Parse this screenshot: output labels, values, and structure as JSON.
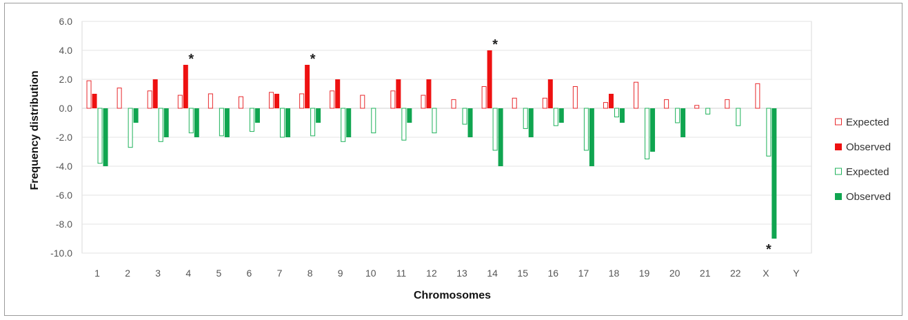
{
  "chart_data": {
    "type": "bar",
    "xlabel": "Chromosomes",
    "ylabel": "Frequency distribution",
    "ylim": [
      -10,
      6
    ],
    "yticks": [
      "6.0",
      "4.0",
      "2.0",
      "0.0",
      "-2.0",
      "-4.0",
      "-6.0",
      "-8.0",
      "-10.0"
    ],
    "categories": [
      "1",
      "2",
      "3",
      "4",
      "5",
      "6",
      "7",
      "8",
      "9",
      "10",
      "11",
      "12",
      "13",
      "14",
      "15",
      "16",
      "17",
      "18",
      "19",
      "20",
      "21",
      "22",
      "X",
      "Y"
    ],
    "grid": true,
    "legend_position": "right",
    "series": [
      {
        "name": "Expected",
        "style": "outline",
        "color": "#e8272b",
        "values": [
          1.9,
          1.4,
          1.2,
          0.9,
          1.0,
          0.8,
          1.1,
          1.0,
          1.2,
          0.9,
          1.2,
          0.9,
          0.6,
          1.5,
          0.7,
          0.7,
          1.5,
          0.4,
          1.8,
          0.6,
          0.2,
          0.6,
          1.7,
          0
        ]
      },
      {
        "name": "Observed",
        "style": "filled",
        "color": "#ee1111",
        "values": [
          1,
          0,
          2,
          3,
          0,
          0,
          1,
          3,
          2,
          0,
          2,
          2,
          0,
          4,
          0,
          2,
          0,
          1,
          0,
          0,
          0,
          0,
          0,
          0
        ]
      },
      {
        "name": "Expected",
        "style": "outline",
        "color": "#1db15a",
        "values": [
          -3.8,
          -2.7,
          -2.3,
          -1.7,
          -1.9,
          -1.6,
          -2.0,
          -1.9,
          -2.3,
          -1.7,
          -2.2,
          -1.7,
          -1.1,
          -2.9,
          -1.4,
          -1.2,
          -2.9,
          -0.6,
          -3.5,
          -1.0,
          -0.4,
          -1.2,
          -3.3,
          0
        ]
      },
      {
        "name": "Observed",
        "style": "filled",
        "color": "#10a550",
        "values": [
          -4,
          -1,
          -2,
          -2,
          -2,
          -1,
          -2,
          -1,
          -2,
          0,
          -1,
          0,
          -2,
          -4,
          -2,
          -1,
          -4,
          -1,
          -3,
          -2,
          0,
          0,
          -9,
          0
        ]
      }
    ],
    "annotations": [
      {
        "text": "*",
        "category": "4",
        "value": 3.0,
        "side": "above"
      },
      {
        "text": "*",
        "category": "8",
        "value": 3.0,
        "side": "above"
      },
      {
        "text": "*",
        "category": "14",
        "value": 4.0,
        "side": "above"
      },
      {
        "text": "*",
        "category": "X",
        "value": -9.0,
        "side": "below"
      }
    ]
  }
}
